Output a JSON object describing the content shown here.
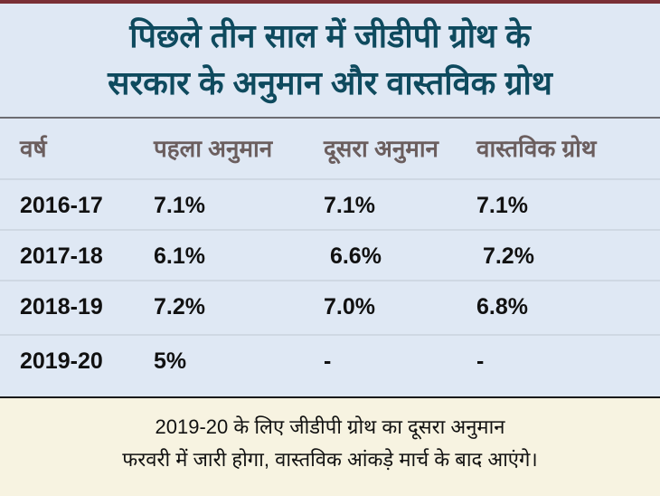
{
  "title": {
    "line1": "पिछले तीन साल में जीडीपी ग्रोथ के",
    "line2": "सरकार के अनुमान और वास्तविक ग्रोथ"
  },
  "colors": {
    "top_bar": "#7a2f35",
    "title": "#0e4a5e",
    "header_text": "#6b5e5e",
    "background": "#dfe8f4",
    "footer_background": "#f7f3e1"
  },
  "table": {
    "headers": [
      "वर्ष",
      "पहला अनुमान",
      "दूसरा अनुमान",
      "वास्तविक ग्रोथ"
    ],
    "rows": [
      [
        "2016-17",
        "7.1%",
        "7.1%",
        "7.1%"
      ],
      [
        "2017-18",
        "6.1%",
        " 6.6%",
        " 7.2%"
      ],
      [
        "2018-19",
        "7.2%",
        "7.0%",
        "6.8%"
      ],
      [
        "2019-20",
        "5%",
        "-",
        "-"
      ]
    ]
  },
  "footer": {
    "line1": "2019-20 के लिए जीडीपी ग्रोथ का दूसरा अनुमान",
    "line2": "फरवरी में जारी होगा, वास्तविक आंकड़े मार्च के बाद आएंगे।"
  }
}
